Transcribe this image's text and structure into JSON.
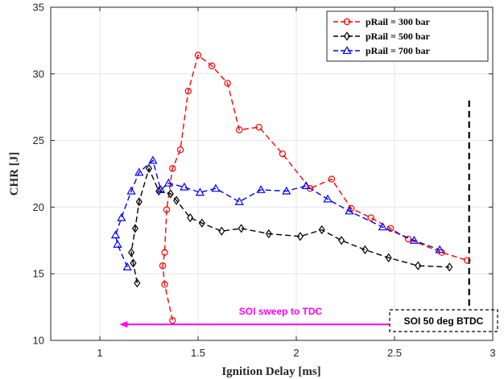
{
  "chart_data": {
    "type": "line",
    "xlabel": "Ignition Delay [ms]",
    "ylabel": "CHR [J]",
    "xlim": [
      0.75,
      3.0
    ],
    "ylim": [
      10,
      35
    ],
    "xticks": [
      1,
      1.5,
      2,
      2.5,
      3
    ],
    "xtick_labels": [
      "1",
      "1.5",
      "2",
      "2.5",
      "3"
    ],
    "yticks": [
      10,
      15,
      20,
      25,
      30,
      35
    ],
    "ytick_labels": [
      "10",
      "15",
      "20",
      "25",
      "30",
      "35"
    ],
    "grid": true,
    "legend_position": "top-right",
    "series": [
      {
        "name": "pRail = 300 bar",
        "color": "#ff0000",
        "marker": "circle",
        "line_style": "dashed",
        "x": [
          1.37,
          1.33,
          1.32,
          1.33,
          1.34,
          1.37,
          1.41,
          1.45,
          1.5,
          1.57,
          1.65,
          1.71,
          1.81,
          1.93,
          2.07,
          2.18,
          2.28,
          2.38,
          2.48,
          2.57,
          2.74,
          2.87
        ],
        "y": [
          11.5,
          14.2,
          15.6,
          16.6,
          19.8,
          22.9,
          24.3,
          28.7,
          31.4,
          30.6,
          29.3,
          25.8,
          26.0,
          24.0,
          21.4,
          22.1,
          19.9,
          19.2,
          18.4,
          17.6,
          16.6,
          16.0
        ]
      },
      {
        "name": "pRail = 500 bar",
        "color": "#000000",
        "marker": "diamond",
        "line_style": "dashed",
        "x": [
          1.19,
          1.17,
          1.16,
          1.18,
          1.2,
          1.25,
          1.3,
          1.36,
          1.39,
          1.46,
          1.52,
          1.62,
          1.72,
          1.86,
          2.02,
          2.13,
          2.23,
          2.35,
          2.47,
          2.62,
          2.78
        ],
        "y": [
          14.3,
          15.8,
          16.6,
          18.4,
          20.4,
          22.9,
          21.2,
          21.0,
          20.5,
          19.2,
          18.8,
          18.2,
          18.4,
          18.0,
          17.8,
          18.3,
          17.5,
          16.8,
          16.2,
          15.6,
          15.5
        ]
      },
      {
        "name": "pRail = 700 bar",
        "color": "#0000ff",
        "marker": "triangle",
        "line_style": "dashed",
        "x": [
          1.14,
          1.09,
          1.08,
          1.11,
          1.16,
          1.2,
          1.27,
          1.31,
          1.35,
          1.43,
          1.51,
          1.59,
          1.71,
          1.82,
          1.95,
          2.05,
          2.16,
          2.27,
          2.44,
          2.6,
          2.73
        ],
        "y": [
          15.5,
          17.2,
          17.9,
          19.2,
          21.2,
          22.6,
          23.5,
          21.3,
          21.8,
          21.5,
          21.1,
          21.4,
          20.4,
          21.3,
          21.2,
          21.6,
          20.6,
          19.7,
          18.5,
          17.5,
          16.8
        ]
      }
    ],
    "annotations": {
      "sweep_text": "SOI sweep to TDC",
      "sweep_color": "#ff00ff",
      "sweep_arrow_from_x": 2.58,
      "sweep_arrow_to_x": 1.1,
      "sweep_arrow_y": 11.2,
      "box_text": "SOI 50 deg BTDC",
      "vline_x": 2.88,
      "vline_from_y": 11.1,
      "vline_to_y": 28.0
    }
  }
}
